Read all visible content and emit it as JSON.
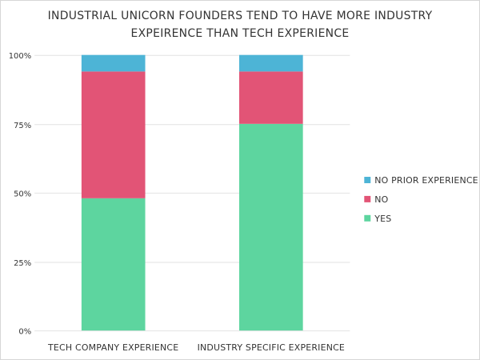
{
  "chart_data": {
    "type": "bar",
    "stacked": true,
    "title_lines": [
      "INDUSTRIAL UNICORN FOUNDERS TEND TO HAVE MORE INDUSTRY",
      "EXPEIRENCE THAN TECH EXPERIENCE"
    ],
    "categories": [
      "TECH COMPANY EXPERIENCE",
      "INDUSTRY SPECIFIC EXPERIENCE"
    ],
    "series": [
      {
        "name": "YES",
        "values": [
          48,
          75
        ],
        "color": "#5dd59f"
      },
      {
        "name": "NO",
        "values": [
          46,
          19
        ],
        "color": "#e25476"
      },
      {
        "name": "NO PRIOR EXPERIENCE",
        "values": [
          6,
          6
        ],
        "color": "#4db4d6"
      }
    ],
    "ylim": [
      0,
      100
    ],
    "yticks": [
      0,
      25,
      50,
      75,
      100
    ],
    "ytick_labels": [
      "0%",
      "25%",
      "50%",
      "75%",
      "100%"
    ],
    "legend_position": "right",
    "legend_order": [
      "NO PRIOR EXPERIENCE",
      "NO",
      "YES"
    ],
    "grid": true
  }
}
